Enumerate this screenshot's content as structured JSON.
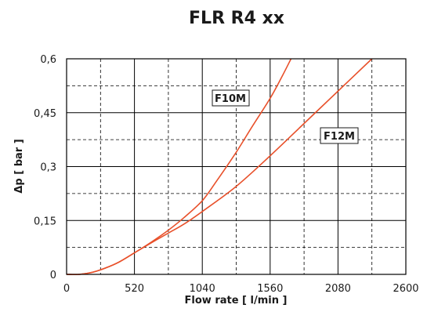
{
  "chart_data": {
    "type": "line",
    "title": "FLR R4 xx",
    "xlabel": "Flow rate [ l/min ]",
    "ylabel": "Δp [ bar ]",
    "xlim": [
      0,
      2600
    ],
    "ylim": [
      0,
      0.6
    ],
    "x_ticks": [
      0,
      520,
      1040,
      1560,
      2080,
      2600
    ],
    "x_tick_labels": [
      "0",
      "520",
      "1040",
      "1560",
      "2080",
      "2600"
    ],
    "y_ticks": [
      0,
      0.15,
      0.3,
      0.45,
      0.6
    ],
    "y_tick_labels": [
      "0",
      "0,15",
      "0,3",
      "0,45",
      "0,6"
    ],
    "x_minor_step": 260,
    "y_minor_step": 0.075,
    "grid": true,
    "legend": "none",
    "series": [
      {
        "name": "F10M",
        "color": "#e8502a",
        "x": [
          0,
          100,
          200,
          300,
          400,
          520,
          650,
          780,
          900,
          1040,
          1150,
          1300,
          1420,
          1560,
          1650,
          1720
        ],
        "y": [
          0,
          0,
          0.006,
          0.018,
          0.034,
          0.06,
          0.09,
          0.123,
          0.158,
          0.205,
          0.26,
          0.34,
          0.41,
          0.49,
          0.55,
          0.6
        ]
      },
      {
        "name": "F12M",
        "color": "#e8502a",
        "x": [
          0,
          100,
          200,
          300,
          400,
          520,
          650,
          780,
          900,
          1040,
          1300,
          1560,
          1820,
          2080,
          2340
        ],
        "y": [
          0,
          0,
          0.006,
          0.018,
          0.034,
          0.06,
          0.088,
          0.115,
          0.14,
          0.175,
          0.245,
          0.33,
          0.42,
          0.51,
          0.6
        ]
      }
    ],
    "annotations": [
      {
        "text": "F10M",
        "series": 0
      },
      {
        "text": "F12M",
        "series": 1
      }
    ]
  }
}
